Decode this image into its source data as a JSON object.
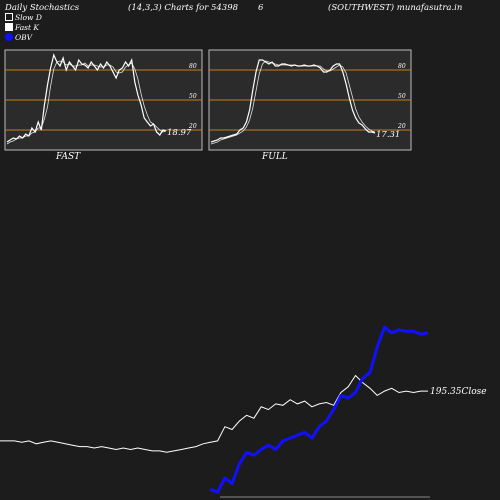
{
  "header": {
    "title": "Daily Stochastics",
    "params": "(14,3,3) Charts for 54398",
    "code": "6",
    "company": "(SOUTHWEST) munafasutra.in"
  },
  "legend": {
    "slow_d": "Slow  D",
    "fast_k": "Fast K",
    "obv": "OBV"
  },
  "colors": {
    "background": "#1c1c1c",
    "panel": "#2b2b2b",
    "band": "#c08020",
    "line": "#ffffff",
    "obv": "#1010ff"
  },
  "chart_data": [
    {
      "type": "line",
      "label": "FAST",
      "ylim": [
        0,
        100
      ],
      "levels": [
        20,
        50,
        80
      ],
      "value_label": "18.97",
      "series": [
        {
          "name": "Fast K",
          "values": [
            8,
            10,
            12,
            11,
            14,
            12,
            16,
            14,
            22,
            18,
            28,
            20,
            45,
            65,
            82,
            95,
            88,
            84,
            92,
            80,
            88,
            84,
            80,
            90,
            86,
            85,
            82,
            88,
            84,
            80,
            86,
            82,
            88,
            84,
            78,
            72,
            80,
            82,
            88,
            84,
            90,
            68,
            55,
            45,
            32,
            28,
            24,
            26,
            18,
            15,
            20,
            19
          ]
        },
        {
          "name": "Slow D",
          "values": [
            6,
            8,
            9,
            11,
            12,
            12,
            14,
            14,
            17,
            18,
            22,
            22,
            31,
            43,
            64,
            81,
            88,
            89,
            88,
            85,
            86,
            84,
            84,
            85,
            85,
            87,
            84,
            85,
            85,
            84,
            83,
            83,
            85,
            85,
            83,
            78,
            77,
            78,
            83,
            85,
            87,
            81,
            71,
            56,
            44,
            35,
            28,
            26,
            23,
            20,
            18,
            19
          ]
        }
      ]
    },
    {
      "type": "line",
      "label": "FULL",
      "ylim": [
        0,
        100
      ],
      "levels": [
        20,
        50,
        80
      ],
      "value_label": "17.31",
      "series": [
        {
          "name": "Fast K",
          "values": [
            8,
            9,
            10,
            12,
            12,
            13,
            14,
            15,
            16,
            20,
            22,
            28,
            40,
            60,
            78,
            90,
            90,
            88,
            86,
            88,
            84,
            84,
            86,
            86,
            85,
            84,
            85,
            84,
            84,
            85,
            84,
            84,
            85,
            84,
            82,
            78,
            78,
            80,
            84,
            86,
            86,
            78,
            66,
            52,
            40,
            32,
            27,
            25,
            21,
            18,
            18,
            17
          ]
        },
        {
          "name": "Slow D",
          "values": [
            6,
            7,
            8,
            10,
            11,
            12,
            13,
            14,
            15,
            17,
            19,
            23,
            30,
            42,
            59,
            76,
            86,
            89,
            88,
            87,
            86,
            85,
            85,
            85,
            85,
            85,
            85,
            84,
            84,
            84,
            84,
            84,
            84,
            84,
            84,
            81,
            79,
            79,
            81,
            83,
            85,
            83,
            77,
            65,
            53,
            41,
            33,
            28,
            24,
            21,
            19,
            18
          ]
        }
      ]
    },
    {
      "type": "line",
      "label": "OBV",
      "value_label": "195.35Close",
      "series": [
        {
          "name": "Close",
          "values": [
            38,
            38,
            38,
            37,
            38,
            36,
            37,
            38,
            37,
            36,
            35,
            34,
            34,
            33,
            34,
            33,
            32,
            33,
            32,
            33,
            32,
            31,
            31,
            30,
            31,
            32,
            33,
            34,
            36,
            37,
            38,
            48,
            46,
            52,
            56,
            54,
            62,
            60,
            64,
            63,
            67,
            64,
            66,
            62,
            64,
            65,
            63,
            72,
            76,
            84,
            79,
            75,
            70,
            73,
            75,
            72,
            73,
            72,
            73,
            73
          ]
        },
        {
          "name": "OBV",
          "values": [
            null,
            null,
            null,
            null,
            null,
            null,
            null,
            null,
            null,
            null,
            null,
            null,
            null,
            null,
            null,
            null,
            null,
            null,
            null,
            null,
            null,
            null,
            null,
            null,
            null,
            null,
            null,
            null,
            null,
            4,
            2,
            12,
            8,
            22,
            30,
            28,
            32,
            35,
            32,
            38,
            40,
            42,
            44,
            40,
            48,
            52,
            60,
            70,
            68,
            72,
            82,
            86,
            104,
            118,
            114,
            116,
            115,
            115,
            113,
            114
          ]
        }
      ]
    }
  ]
}
